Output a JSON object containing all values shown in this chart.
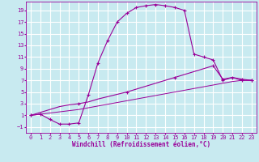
{
  "background_color": "#c8eaf0",
  "grid_color": "#ffffff",
  "line_color": "#990099",
  "xlabel": "Windchill (Refroidissement éolien,°C)",
  "xlim": [
    -0.5,
    23.5
  ],
  "ylim": [
    -2,
    20.5
  ],
  "xticks": [
    0,
    1,
    2,
    3,
    4,
    5,
    6,
    7,
    8,
    9,
    10,
    11,
    12,
    13,
    14,
    15,
    16,
    17,
    18,
    19,
    20,
    21,
    22,
    23
  ],
  "yticks": [
    -1,
    1,
    3,
    5,
    7,
    9,
    11,
    13,
    15,
    17,
    19
  ],
  "curve1_x": [
    0,
    1,
    2,
    3,
    4,
    5,
    6,
    7,
    8,
    9,
    10,
    11,
    12,
    13,
    14,
    15,
    16,
    17,
    18,
    19,
    20,
    21,
    22,
    23
  ],
  "curve1_y": [
    1.0,
    1.2,
    0.3,
    -0.5,
    -0.5,
    -0.3,
    4.5,
    10.0,
    13.8,
    17.0,
    18.5,
    19.5,
    19.8,
    20.0,
    19.8,
    19.5,
    19.0,
    11.5,
    11.0,
    10.5,
    7.0,
    7.5,
    7.0,
    7.0
  ],
  "curve2_x": [
    0,
    1,
    2,
    3,
    4,
    5,
    6,
    7,
    8,
    9,
    10,
    11,
    12,
    13,
    14,
    15,
    16,
    17,
    18,
    19,
    20,
    21,
    22,
    23
  ],
  "curve2_y": [
    1.0,
    1.5,
    2.0,
    2.5,
    2.8,
    3.0,
    3.3,
    3.8,
    4.2,
    4.6,
    5.0,
    5.5,
    6.0,
    6.5,
    7.0,
    7.5,
    8.0,
    8.5,
    9.0,
    9.5,
    7.2,
    7.5,
    7.2,
    7.0
  ],
  "curve3_x": [
    0,
    1,
    2,
    3,
    4,
    5,
    6,
    7,
    8,
    9,
    10,
    11,
    12,
    13,
    14,
    15,
    16,
    17,
    18,
    19,
    20,
    21,
    22,
    23
  ],
  "curve3_y": [
    1.0,
    1.2,
    1.4,
    1.6,
    1.8,
    2.0,
    2.3,
    2.6,
    2.9,
    3.2,
    3.5,
    3.8,
    4.1,
    4.4,
    4.7,
    5.0,
    5.3,
    5.6,
    5.9,
    6.2,
    6.5,
    6.8,
    7.0,
    7.0
  ],
  "font_color": "#990099",
  "font_family": "monospace",
  "font_size_axis": 5.0,
  "font_size_label": 5.5,
  "figsize": [
    3.2,
    2.0
  ],
  "dpi": 100
}
